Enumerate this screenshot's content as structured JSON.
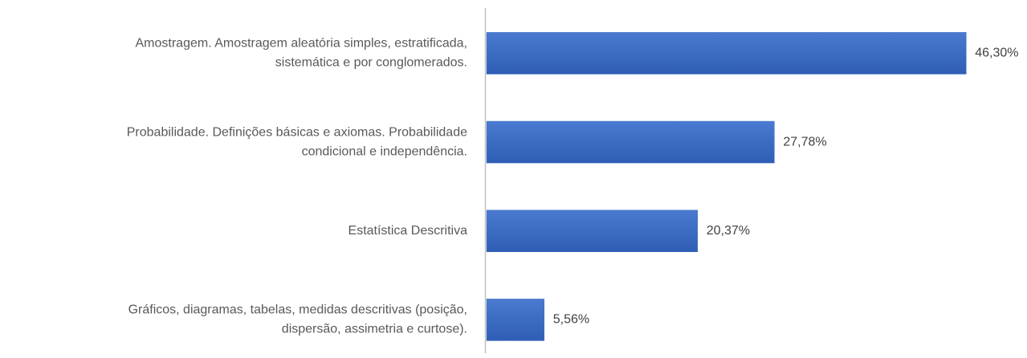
{
  "chart_data": {
    "type": "bar",
    "orientation": "horizontal",
    "categories": [
      [
        "Amostragem. Amostragem aleatória simples, estratificada,",
        "sistemática e por conglomerados."
      ],
      [
        "Probabilidade. Definições básicas e axiomas. Probabilidade",
        "condicional e independência."
      ],
      [
        "Estatística Descritiva"
      ],
      [
        "Gráficos, diagramas, tabelas, medidas descritivas (posição,",
        "dispersão, assimetria e curtose)."
      ]
    ],
    "values": [
      46.3,
      27.78,
      20.37,
      5.56
    ],
    "value_labels": [
      "46,30%",
      "27,78%",
      "20,37%",
      "5,56%"
    ],
    "color": "#4472c4"
  }
}
